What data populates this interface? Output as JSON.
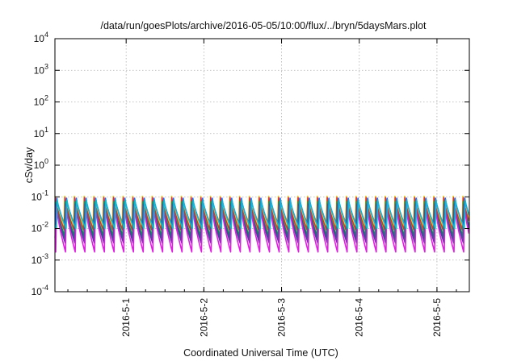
{
  "chart_data": {
    "type": "line",
    "title": "/data/run/goesPlots/archive/2016-05-05/10:00/flux/../bryn/5daysMars.plot",
    "xlabel": "Coordinated Universal Time (UTC)",
    "ylabel": "cSv/day",
    "yscale": "log",
    "ylim": [
      0.0001,
      10000
    ],
    "xlim": [
      "2016-04-30 02:00",
      "2016-05-05 10:00"
    ],
    "yticks": [
      {
        "base": "10",
        "exp": "-4",
        "value": 0.0001
      },
      {
        "base": "10",
        "exp": "-3",
        "value": 0.001
      },
      {
        "base": "10",
        "exp": "-2",
        "value": 0.01
      },
      {
        "base": "10",
        "exp": "-1",
        "value": 0.1
      },
      {
        "base": "10",
        "exp": "0",
        "value": 1
      },
      {
        "base": "10",
        "exp": "1",
        "value": 10
      },
      {
        "base": "10",
        "exp": "2",
        "value": 100
      },
      {
        "base": "10",
        "exp": "3",
        "value": 1000
      },
      {
        "base": "10",
        "exp": "4",
        "value": 10000
      }
    ],
    "xticks": [
      {
        "label": "2016-5-1",
        "value": "2016-05-01 00:00"
      },
      {
        "label": "2016-5-2",
        "value": "2016-05-02 00:00"
      },
      {
        "label": "2016-5-3",
        "value": "2016-05-03 00:00"
      },
      {
        "label": "2016-5-4",
        "value": "2016-05-04 00:00"
      },
      {
        "label": "2016-5-5",
        "value": "2016-05-05 00:00"
      }
    ],
    "grid": true,
    "legend": "none",
    "series_pattern": {
      "period_hours": 3,
      "peak_shift_hours": 0.1,
      "colors": [
        "#e8e020",
        "#e03030",
        "#1f9e3a",
        "#0a7a7a",
        "#5a3aa0",
        "#e020e0",
        "#2060ff",
        "#10b8d0"
      ],
      "peak_levels": [
        0.105,
        0.095,
        0.07,
        0.06,
        0.055,
        0.05,
        0.09,
        0.08
      ],
      "trough_levels": [
        0.012,
        0.009,
        0.006,
        0.005,
        0.0035,
        0.0018,
        0.011,
        0.01
      ]
    }
  }
}
